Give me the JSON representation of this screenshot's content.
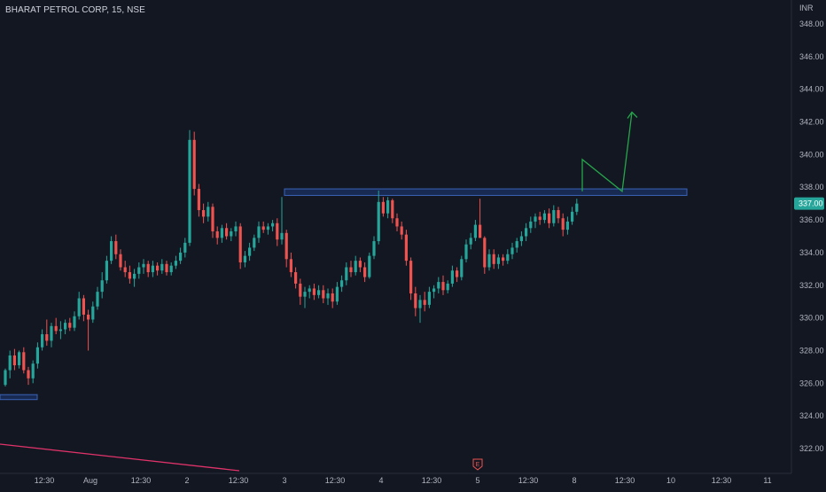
{
  "symbol_title": "BHARAT PETROL CORP, 15, NSE",
  "currency": "INR",
  "last_price_label": "337.00",
  "earnings_marker": "E",
  "colors": {
    "background": "#131722",
    "up": "#26a69a",
    "down": "#ef5350",
    "axis_text": "#b2b5be",
    "border": "#2a2e39",
    "price_tag": "#26a69a",
    "zone_fill": "#1e3a78",
    "zone_stroke": "#3a63b8",
    "projection": "#26a64a",
    "trendline": "#e0336a"
  },
  "chart_data": {
    "type": "candlestick",
    "ylim": [
      321,
      349
    ],
    "y_ticks": [
      "322.00",
      "324.00",
      "326.00",
      "328.00",
      "330.00",
      "332.00",
      "334.00",
      "336.00",
      "338.00",
      "340.00",
      "342.00",
      "344.00",
      "346.00",
      "348.00"
    ],
    "x_ticks": [
      "12:30",
      "Aug",
      "12:30",
      "2",
      "12:30",
      "3",
      "12:30",
      "4",
      "12:30",
      "5",
      "12:30",
      "8",
      "12:30",
      "10",
      "12:30",
      "11"
    ],
    "resistance_zone": [
      337.5,
      337.9
    ],
    "support_zone": [
      325.0,
      325.3
    ],
    "projection_path": [
      337.75,
      339.7,
      337.75,
      342.6
    ],
    "candles": [
      [
        325.9,
        326.9,
        325.8,
        326.8
      ],
      [
        326.8,
        328.0,
        326.3,
        327.7
      ],
      [
        327.7,
        328.1,
        326.8,
        327.1
      ],
      [
        327.1,
        328.0,
        326.9,
        327.9
      ],
      [
        327.9,
        328.2,
        326.6,
        326.8
      ],
      [
        326.8,
        327.0,
        325.9,
        326.3
      ],
      [
        326.3,
        327.4,
        326.0,
        327.2
      ],
      [
        327.2,
        328.5,
        326.9,
        328.2
      ],
      [
        328.2,
        329.3,
        328.0,
        329.0
      ],
      [
        329.0,
        329.9,
        328.3,
        328.6
      ],
      [
        328.6,
        329.7,
        328.2,
        329.5
      ],
      [
        329.5,
        330.0,
        329.0,
        329.2
      ],
      [
        329.2,
        329.8,
        328.7,
        329.3
      ],
      [
        329.3,
        329.9,
        329.0,
        329.7
      ],
      [
        329.7,
        330.0,
        329.2,
        329.4
      ],
      [
        329.4,
        330.4,
        329.2,
        330.1
      ],
      [
        330.1,
        331.6,
        329.9,
        331.2
      ],
      [
        331.2,
        331.4,
        329.8,
        330.2
      ],
      [
        330.2,
        330.5,
        328.0,
        329.9
      ],
      [
        329.9,
        331.0,
        329.7,
        330.7
      ],
      [
        330.7,
        331.9,
        330.5,
        331.6
      ],
      [
        331.6,
        332.8,
        331.2,
        332.3
      ],
      [
        332.3,
        333.8,
        332.1,
        333.5
      ],
      [
        333.5,
        335.0,
        333.3,
        334.7
      ],
      [
        334.7,
        335.1,
        333.6,
        333.9
      ],
      [
        333.9,
        334.2,
        332.9,
        333.1
      ],
      [
        333.1,
        333.5,
        332.5,
        332.8
      ],
      [
        332.8,
        333.2,
        332.1,
        332.4
      ],
      [
        332.4,
        333.0,
        331.9,
        332.7
      ],
      [
        332.7,
        333.4,
        332.4,
        333.1
      ],
      [
        333.1,
        333.6,
        332.7,
        333.3
      ],
      [
        333.3,
        333.5,
        332.5,
        332.8
      ],
      [
        332.8,
        333.5,
        332.5,
        333.2
      ],
      [
        333.2,
        333.4,
        332.6,
        332.9
      ],
      [
        332.9,
        333.6,
        332.7,
        333.3
      ],
      [
        333.3,
        333.5,
        332.6,
        332.8
      ],
      [
        332.8,
        333.4,
        332.6,
        333.2
      ],
      [
        333.2,
        333.8,
        333.0,
        333.5
      ],
      [
        333.5,
        334.3,
        333.3,
        334.0
      ],
      [
        334.0,
        334.9,
        333.7,
        334.6
      ],
      [
        334.6,
        341.5,
        334.4,
        340.9
      ],
      [
        340.9,
        341.4,
        337.5,
        337.9
      ],
      [
        337.9,
        338.2,
        336.2,
        336.6
      ],
      [
        336.6,
        337.0,
        335.8,
        336.2
      ],
      [
        336.2,
        337.1,
        335.9,
        336.8
      ],
      [
        336.8,
        337.0,
        334.9,
        335.3
      ],
      [
        335.3,
        335.6,
        334.5,
        334.9
      ],
      [
        334.9,
        335.7,
        334.6,
        335.5
      ],
      [
        335.5,
        335.8,
        334.8,
        335.0
      ],
      [
        335.0,
        335.5,
        334.7,
        335.3
      ],
      [
        335.3,
        335.9,
        335.0,
        335.6
      ],
      [
        335.6,
        335.8,
        333.0,
        333.4
      ],
      [
        333.4,
        334.1,
        333.1,
        333.8
      ],
      [
        333.8,
        334.6,
        333.5,
        334.3
      ],
      [
        334.3,
        335.1,
        334.1,
        334.9
      ],
      [
        334.9,
        335.9,
        334.6,
        335.6
      ],
      [
        335.6,
        335.9,
        335.2,
        335.4
      ],
      [
        335.4,
        335.8,
        335.1,
        335.6
      ],
      [
        335.6,
        336.0,
        335.3,
        335.8
      ],
      [
        335.8,
        336.1,
        334.4,
        334.8
      ],
      [
        334.8,
        337.4,
        334.5,
        335.2
      ],
      [
        335.2,
        335.4,
        333.1,
        333.6
      ],
      [
        333.6,
        334.0,
        332.5,
        332.8
      ],
      [
        332.8,
        333.1,
        331.8,
        332.1
      ],
      [
        332.1,
        332.4,
        330.8,
        331.3
      ],
      [
        331.3,
        331.9,
        330.6,
        331.6
      ],
      [
        331.6,
        332.0,
        331.2,
        331.8
      ],
      [
        331.8,
        332.1,
        331.1,
        331.4
      ],
      [
        331.4,
        332.0,
        331.2,
        331.7
      ],
      [
        331.7,
        332.0,
        330.9,
        331.2
      ],
      [
        331.2,
        331.8,
        330.8,
        331.5
      ],
      [
        331.5,
        331.8,
        330.6,
        331.0
      ],
      [
        331.0,
        332.2,
        330.8,
        331.9
      ],
      [
        331.9,
        332.6,
        331.6,
        332.3
      ],
      [
        332.3,
        333.4,
        332.0,
        333.1
      ],
      [
        333.1,
        333.5,
        332.5,
        332.8
      ],
      [
        332.8,
        333.8,
        332.6,
        333.5
      ],
      [
        333.5,
        333.7,
        332.8,
        333.1
      ],
      [
        333.1,
        333.4,
        332.2,
        332.5
      ],
      [
        332.5,
        334.0,
        332.4,
        333.8
      ],
      [
        333.8,
        335.0,
        333.6,
        334.7
      ],
      [
        334.7,
        337.8,
        334.5,
        337.1
      ],
      [
        337.1,
        337.4,
        336.2,
        336.4
      ],
      [
        336.4,
        337.4,
        336.1,
        337.2
      ],
      [
        337.2,
        337.3,
        335.8,
        336.1
      ],
      [
        336.1,
        336.4,
        335.3,
        335.6
      ],
      [
        335.6,
        335.9,
        334.8,
        335.1
      ],
      [
        335.1,
        335.4,
        333.2,
        333.5
      ],
      [
        333.5,
        333.7,
        331.1,
        331.5
      ],
      [
        331.5,
        331.9,
        330.1,
        330.6
      ],
      [
        330.6,
        331.4,
        329.7,
        331.1
      ],
      [
        331.1,
        331.6,
        330.4,
        330.8
      ],
      [
        330.8,
        331.9,
        330.6,
        331.6
      ],
      [
        331.6,
        332.0,
        331.2,
        331.8
      ],
      [
        331.8,
        332.5,
        331.5,
        332.2
      ],
      [
        332.2,
        332.6,
        331.4,
        331.7
      ],
      [
        331.7,
        332.3,
        331.5,
        332.1
      ],
      [
        332.1,
        333.2,
        331.9,
        332.9
      ],
      [
        332.9,
        333.1,
        332.2,
        332.5
      ],
      [
        332.5,
        333.8,
        332.3,
        333.6
      ],
      [
        333.6,
        334.8,
        333.4,
        334.5
      ],
      [
        334.5,
        335.2,
        334.2,
        334.9
      ],
      [
        334.9,
        336.0,
        334.7,
        335.7
      ],
      [
        335.7,
        337.3,
        334.9,
        334.9
      ],
      [
        334.9,
        335.0,
        332.7,
        333.1
      ],
      [
        333.1,
        334.2,
        332.9,
        333.9
      ],
      [
        333.9,
        334.2,
        333.0,
        333.3
      ],
      [
        333.3,
        333.9,
        333.0,
        333.7
      ],
      [
        333.7,
        333.9,
        333.2,
        333.5
      ],
      [
        333.5,
        334.2,
        333.3,
        333.9
      ],
      [
        333.9,
        334.6,
        333.6,
        334.3
      ],
      [
        334.3,
        334.9,
        334.0,
        334.7
      ],
      [
        334.7,
        335.3,
        334.4,
        335.0
      ],
      [
        335.0,
        335.8,
        334.7,
        335.5
      ],
      [
        335.5,
        336.2,
        335.2,
        335.9
      ],
      [
        335.9,
        336.4,
        335.5,
        336.2
      ],
      [
        336.2,
        336.5,
        335.7,
        336.0
      ],
      [
        336.0,
        336.6,
        335.8,
        336.4
      ],
      [
        336.4,
        336.7,
        335.5,
        335.8
      ],
      [
        335.8,
        336.9,
        335.6,
        336.6
      ],
      [
        336.6,
        336.8,
        335.8,
        336.1
      ],
      [
        336.1,
        336.4,
        335.0,
        335.4
      ],
      [
        335.4,
        336.2,
        335.1,
        335.9
      ],
      [
        335.9,
        336.8,
        335.7,
        336.5
      ],
      [
        336.5,
        337.3,
        336.3,
        337.0
      ]
    ]
  }
}
